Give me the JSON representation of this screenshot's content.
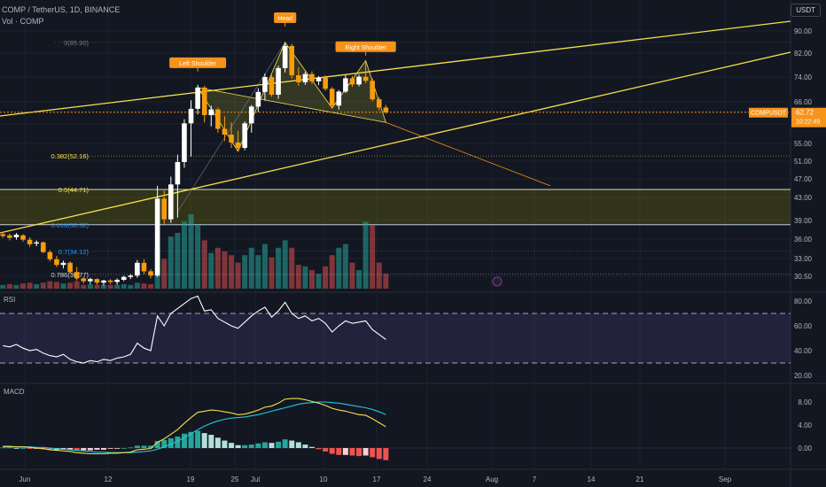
{
  "header": {
    "symbol_line": "COMP / TetherUS, 1D, BINANCE",
    "volume_line": "Vol · COMP",
    "currency": "USDT"
  },
  "panes": {
    "rsi_label": "RSI",
    "macd_label": "MACD"
  },
  "colors": {
    "up": "#ffffff",
    "down": "#f79c0d",
    "vol_up": "#26a69a",
    "vol_down": "#ef5350",
    "trend": "#f5e04a",
    "accent": "#f7931a"
  },
  "chart_data": [
    {
      "type": "candlestick",
      "title": "COMP / TetherUS, 1D, BINANCE",
      "y_axis_ticks": [
        90.0,
        82.0,
        74.0,
        66.0,
        59.0,
        55.0,
        51.0,
        47.0,
        43.0,
        39.0,
        36.0,
        33.0,
        30.5
      ],
      "x_axis_ticks": [
        "Jun",
        "12",
        "19",
        "25",
        "Jul",
        "10",
        "17",
        "24",
        "Aug",
        "7",
        "14",
        "21",
        "Sep"
      ],
      "last_price": {
        "symbol": "COMPUSDT",
        "price": "62.72",
        "countdown": "10:22:49"
      },
      "fib_levels": [
        {
          "label": "0(85.90)",
          "value": 85.9
        },
        {
          "label": "0.382(52.16)",
          "value": 52.16
        },
        {
          "label": "0.5(44.71)",
          "value": 44.71
        },
        {
          "label": "0.618(38.32)",
          "value": 38.32
        },
        {
          "label": "0.7(34.12)",
          "value": 34.12
        },
        {
          "label": "0.786(30.77)",
          "value": 30.77
        }
      ],
      "pattern_labels": [
        "Left Shoulder",
        "Head",
        "Right Shoulder"
      ],
      "candles": [
        [
          36.8,
          37.2,
          36.2,
          36.5
        ],
        [
          36.6,
          36.9,
          35.8,
          36.2
        ],
        [
          36.3,
          37.0,
          35.9,
          36.7
        ],
        [
          36.6,
          36.8,
          35.6,
          35.9
        ],
        [
          35.9,
          36.3,
          34.8,
          35.2
        ],
        [
          35.3,
          35.8,
          34.9,
          35.5
        ],
        [
          35.5,
          35.6,
          33.8,
          34.0
        ],
        [
          34.0,
          34.3,
          32.6,
          32.9
        ],
        [
          32.9,
          33.4,
          31.8,
          32.1
        ],
        [
          32.1,
          32.7,
          31.6,
          32.4
        ],
        [
          32.4,
          32.6,
          30.9,
          31.1
        ],
        [
          31.1,
          31.8,
          29.9,
          30.2
        ],
        [
          30.2,
          30.4,
          29.5,
          29.8
        ],
        [
          29.8,
          30.3,
          29.4,
          30.1
        ],
        [
          30.1,
          30.2,
          29.3,
          29.6
        ],
        [
          29.6,
          30.0,
          29.2,
          29.9
        ],
        [
          29.9,
          30.1,
          29.4,
          29.7
        ],
        [
          29.7,
          30.2,
          29.3,
          30.0
        ],
        [
          30.0,
          30.6,
          29.8,
          30.4
        ],
        [
          30.4,
          30.8,
          30.1,
          30.6
        ],
        [
          30.6,
          32.8,
          30.3,
          32.4
        ],
        [
          32.4,
          32.9,
          30.8,
          31.2
        ],
        [
          31.2,
          31.5,
          30.2,
          30.6
        ],
        [
          30.6,
          45.5,
          30.4,
          42.8
        ],
        [
          42.8,
          44.5,
          38.4,
          39.2
        ],
        [
          39.2,
          47.5,
          38.6,
          45.8
        ],
        [
          45.8,
          52.5,
          39.5,
          50.8
        ],
        [
          50.8,
          60.5,
          49.5,
          59.2
        ],
        [
          59.2,
          66.5,
          52.0,
          63.8
        ],
        [
          63.8,
          71.5,
          62.0,
          70.6
        ],
        [
          70.6,
          71.2,
          59.5,
          61.8
        ],
        [
          61.8,
          64.8,
          58.5,
          63.6
        ],
        [
          63.6,
          64.2,
          57.2,
          58.0
        ],
        [
          58.0,
          61.4,
          55.5,
          56.8
        ],
        [
          56.8,
          59.5,
          54.0,
          55.2
        ],
        [
          55.2,
          57.6,
          53.2,
          54.0
        ],
        [
          54.0,
          59.8,
          53.5,
          59.2
        ],
        [
          59.2,
          65.0,
          57.2,
          64.5
        ],
        [
          64.5,
          70.4,
          62.8,
          69.2
        ],
        [
          69.2,
          75.2,
          66.4,
          74.0
        ],
        [
          74.0,
          74.8,
          67.6,
          68.3
        ],
        [
          68.3,
          77.8,
          67.0,
          77.0
        ],
        [
          77.0,
          85.9,
          75.5,
          84.6
        ],
        [
          84.6,
          85.4,
          73.5,
          74.6
        ],
        [
          74.6,
          77.2,
          71.2,
          72.3
        ],
        [
          72.3,
          75.8,
          71.5,
          75.0
        ],
        [
          75.0,
          75.9,
          71.8,
          72.6
        ],
        [
          72.6,
          74.3,
          71.4,
          73.8
        ],
        [
          73.8,
          74.5,
          69.5,
          70.2
        ],
        [
          70.2,
          70.8,
          64.0,
          64.8
        ],
        [
          64.8,
          69.8,
          63.5,
          69.3
        ],
        [
          69.3,
          74.6,
          68.8,
          73.6
        ],
        [
          73.6,
          74.4,
          70.8,
          71.6
        ],
        [
          71.6,
          74.8,
          71.0,
          74.1
        ],
        [
          74.1,
          79.5,
          72.0,
          72.8
        ],
        [
          72.8,
          73.6,
          66.2,
          66.8
        ],
        [
          66.8,
          67.5,
          63.2,
          64.2
        ],
        [
          64.2,
          65.0,
          62.2,
          62.7
        ]
      ],
      "volume": [
        [
          0.05,
          "up"
        ],
        [
          0.06,
          "down"
        ],
        [
          0.05,
          "up"
        ],
        [
          0.07,
          "down"
        ],
        [
          0.08,
          "down"
        ],
        [
          0.06,
          "up"
        ],
        [
          0.08,
          "down"
        ],
        [
          0.1,
          "down"
        ],
        [
          0.09,
          "down"
        ],
        [
          0.07,
          "up"
        ],
        [
          0.08,
          "down"
        ],
        [
          0.1,
          "down"
        ],
        [
          0.05,
          "down"
        ],
        [
          0.06,
          "up"
        ],
        [
          0.05,
          "down"
        ],
        [
          0.05,
          "up"
        ],
        [
          0.05,
          "down"
        ],
        [
          0.05,
          "up"
        ],
        [
          0.06,
          "up"
        ],
        [
          0.05,
          "up"
        ],
        [
          0.08,
          "up"
        ],
        [
          0.07,
          "down"
        ],
        [
          0.06,
          "down"
        ],
        [
          0.55,
          "up"
        ],
        [
          0.4,
          "down"
        ],
        [
          0.7,
          "up"
        ],
        [
          0.75,
          "up"
        ],
        [
          0.9,
          "up"
        ],
        [
          1.0,
          "up"
        ],
        [
          0.85,
          "up"
        ],
        [
          0.65,
          "down"
        ],
        [
          0.48,
          "up"
        ],
        [
          0.55,
          "down"
        ],
        [
          0.5,
          "down"
        ],
        [
          0.45,
          "down"
        ],
        [
          0.35,
          "down"
        ],
        [
          0.45,
          "up"
        ],
        [
          0.55,
          "up"
        ],
        [
          0.45,
          "up"
        ],
        [
          0.6,
          "up"
        ],
        [
          0.42,
          "down"
        ],
        [
          0.55,
          "up"
        ],
        [
          0.65,
          "up"
        ],
        [
          0.55,
          "down"
        ],
        [
          0.32,
          "down"
        ],
        [
          0.3,
          "up"
        ],
        [
          0.25,
          "down"
        ],
        [
          0.2,
          "up"
        ],
        [
          0.3,
          "down"
        ],
        [
          0.45,
          "down"
        ],
        [
          0.55,
          "up"
        ],
        [
          0.6,
          "up"
        ],
        [
          0.35,
          "down"
        ],
        [
          0.25,
          "up"
        ],
        [
          0.9,
          "up"
        ],
        [
          0.85,
          "down"
        ],
        [
          0.35,
          "down"
        ],
        [
          0.2,
          "down"
        ]
      ]
    },
    {
      "type": "line",
      "title": "RSI",
      "y_axis_ticks": [
        80.0,
        60.0,
        40.0,
        20.0
      ],
      "bands": [
        70,
        30
      ],
      "values": [
        44,
        43,
        45,
        42,
        40,
        41,
        38,
        36,
        35,
        37,
        33,
        31,
        30,
        32,
        31,
        33,
        32,
        34,
        35,
        37,
        46,
        42,
        40,
        68,
        60,
        70,
        74,
        78,
        82,
        84,
        72,
        73,
        66,
        63,
        60,
        58,
        63,
        68,
        72,
        75,
        67,
        72,
        79,
        70,
        66,
        68,
        64,
        66,
        62,
        55,
        60,
        64,
        62,
        63,
        64,
        57,
        53,
        49
      ]
    },
    {
      "type": "line",
      "title": "MACD",
      "y_axis_ticks": [
        8.0,
        4.0,
        0.0
      ],
      "series": [
        {
          "values": [
            0.3,
            0.3,
            0.2,
            0.2,
            0.1,
            0.0,
            -0.1,
            -0.3,
            -0.4,
            -0.5,
            -0.6,
            -0.8,
            -0.9,
            -1.0,
            -1.0,
            -1.0,
            -0.9,
            -0.9,
            -0.8,
            -0.7,
            -0.3,
            -0.2,
            -0.1,
            1.0,
            1.6,
            2.4,
            3.2,
            4.3,
            5.3,
            6.2,
            6.4,
            6.6,
            6.5,
            6.3,
            6.1,
            5.8,
            5.9,
            6.2,
            6.6,
            7.1,
            7.3,
            7.8,
            8.5,
            8.6,
            8.6,
            8.4,
            8.1,
            7.8,
            7.4,
            6.9,
            6.6,
            6.4,
            6.1,
            5.8,
            5.7,
            5.1,
            4.4,
            3.7
          ]
        },
        {
          "values": [
            0.2,
            0.2,
            0.2,
            0.2,
            0.2,
            0.1,
            0.1,
            0.0,
            -0.1,
            -0.2,
            -0.3,
            -0.4,
            -0.5,
            -0.6,
            -0.7,
            -0.7,
            -0.8,
            -0.8,
            -0.8,
            -0.8,
            -0.7,
            -0.6,
            -0.5,
            -0.2,
            0.2,
            0.7,
            1.2,
            1.8,
            2.5,
            3.2,
            3.8,
            4.3,
            4.7,
            5.0,
            5.2,
            5.3,
            5.4,
            5.6,
            5.8,
            6.1,
            6.4,
            6.7,
            7.0,
            7.3,
            7.6,
            7.8,
            7.9,
            8.0,
            8.0,
            7.9,
            7.8,
            7.6,
            7.4,
            7.2,
            7.0,
            6.7,
            6.3,
            5.8
          ]
        }
      ],
      "histogram": [
        0.1,
        0.1,
        0.0,
        0.0,
        -0.1,
        -0.1,
        -0.2,
        -0.3,
        -0.3,
        -0.3,
        -0.3,
        -0.4,
        -0.4,
        -0.4,
        -0.3,
        -0.3,
        -0.1,
        -0.1,
        0.0,
        0.1,
        0.4,
        0.4,
        0.4,
        1.2,
        1.4,
        1.7,
        2.0,
        2.5,
        2.8,
        3.0,
        2.6,
        2.3,
        1.8,
        1.3,
        0.9,
        0.5,
        0.5,
        0.6,
        0.8,
        1.0,
        0.9,
        1.1,
        1.5,
        1.3,
        1.0,
        0.6,
        0.2,
        -0.2,
        -0.6,
        -1.0,
        -1.2,
        -1.2,
        -1.3,
        -1.4,
        -1.3,
        -1.6,
        -1.9,
        -2.1
      ]
    }
  ]
}
